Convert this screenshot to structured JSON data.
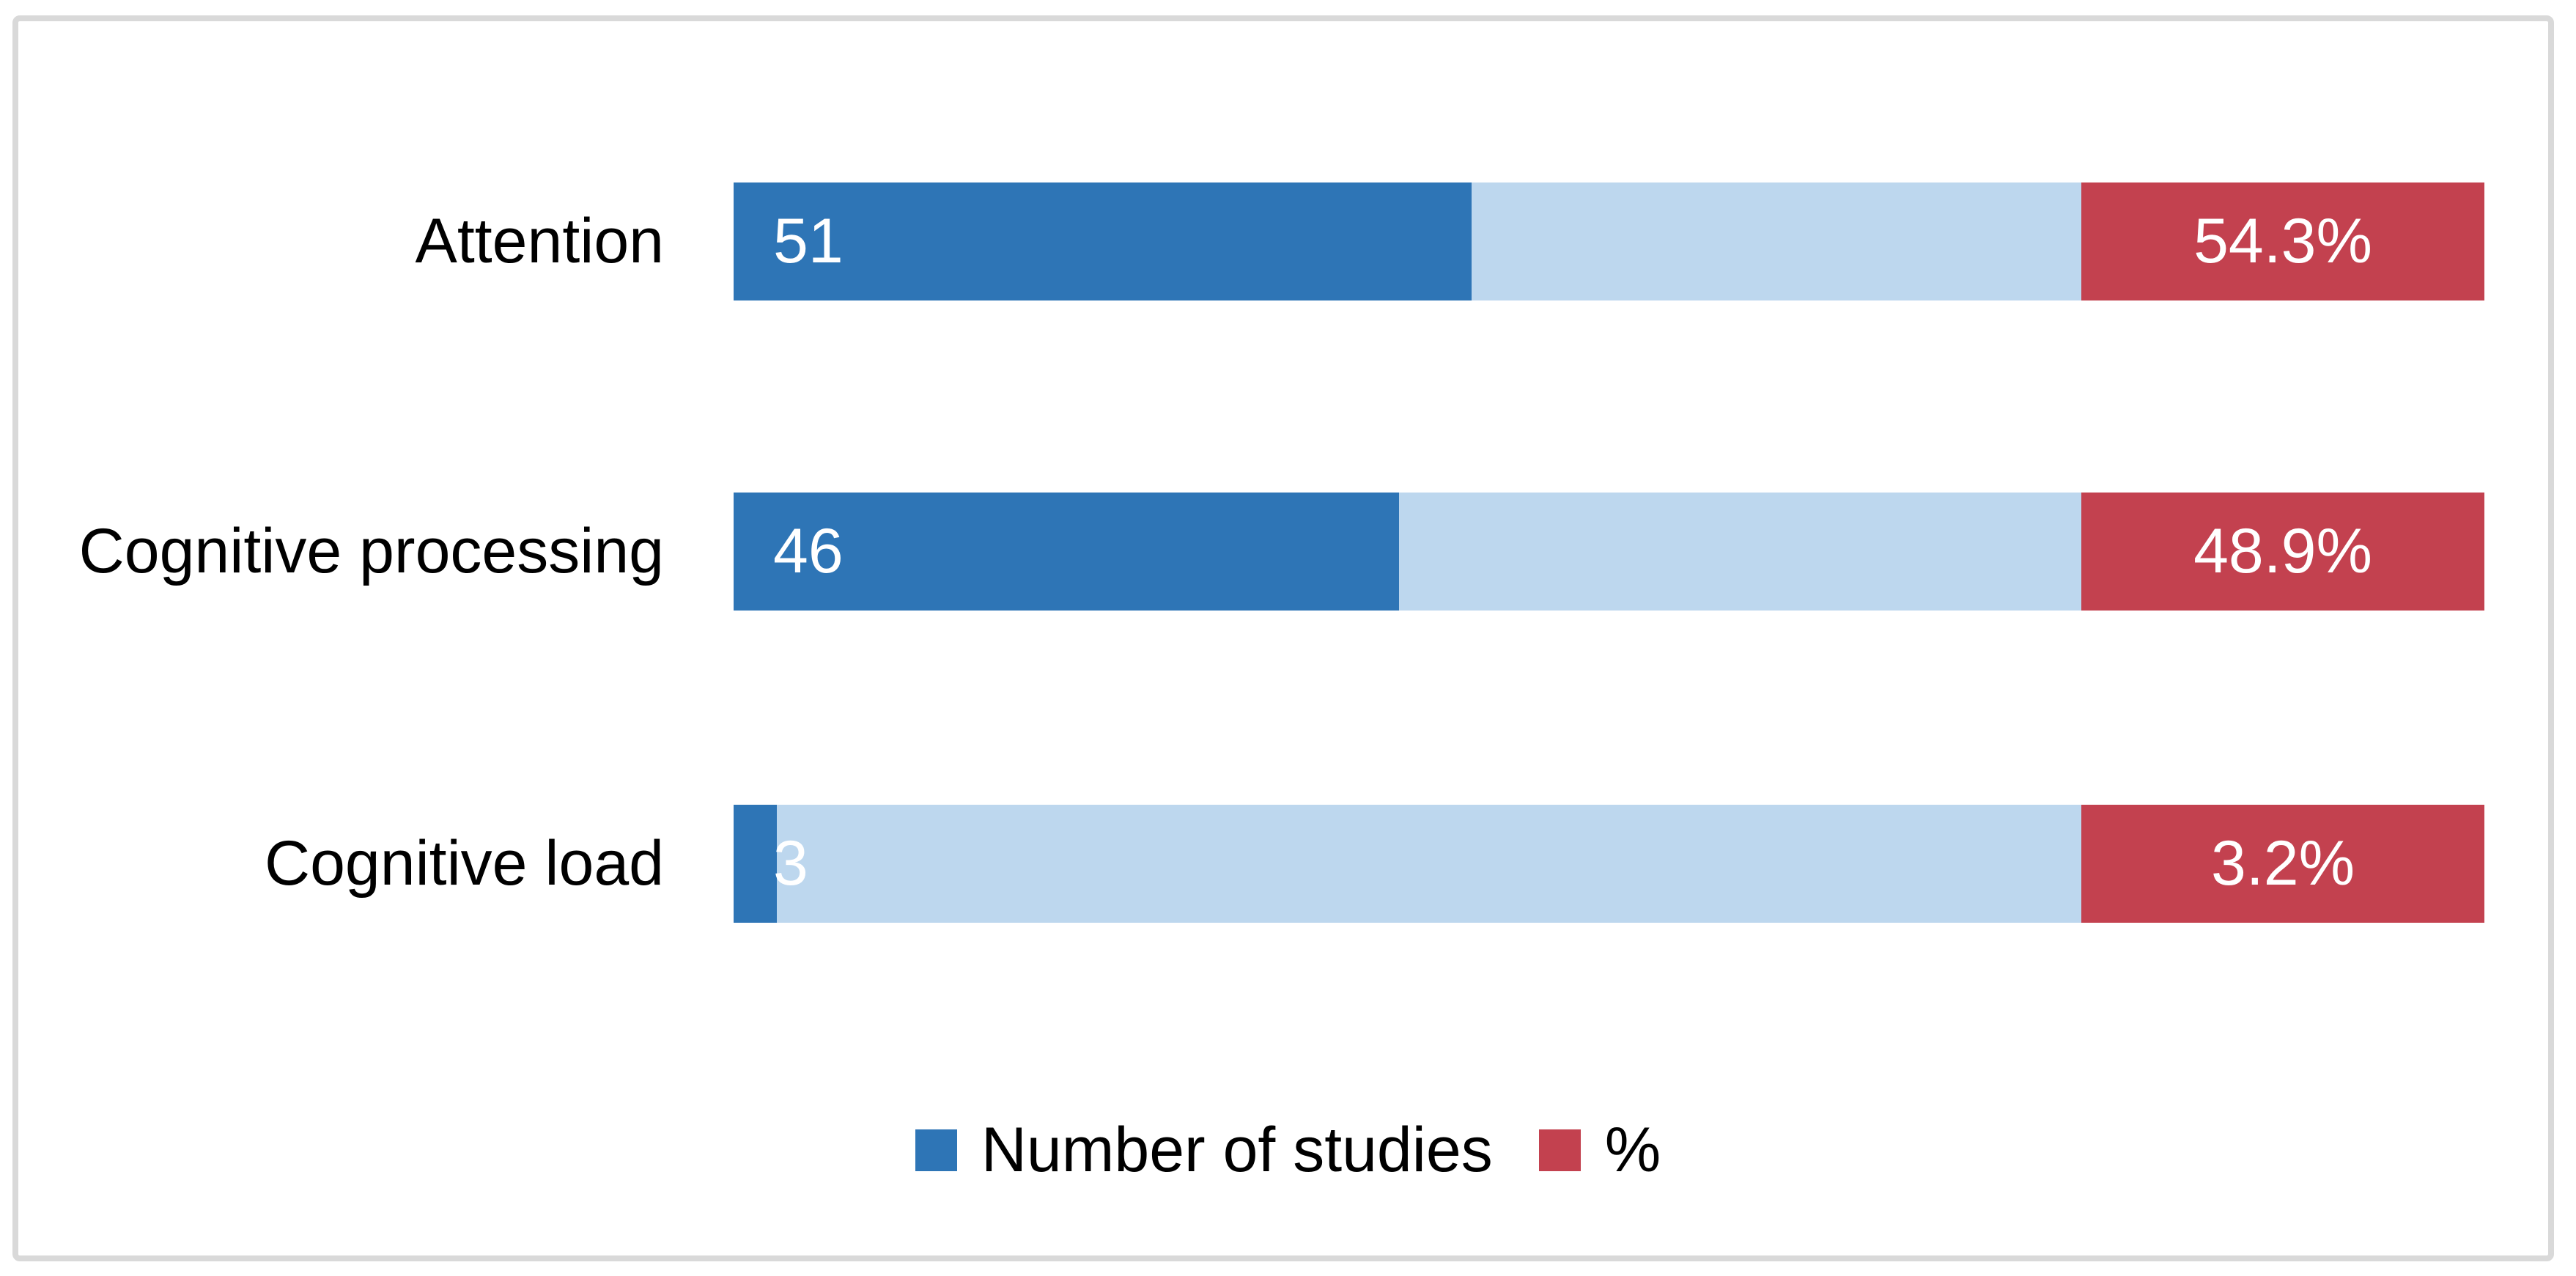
{
  "chart_data": {
    "type": "bar",
    "orientation": "horizontal-stacked",
    "title": "",
    "categories": [
      "Attention",
      "Cognitive processing",
      "Cognitive load"
    ],
    "series": [
      {
        "name": "Number of studies",
        "values": [
          51,
          46,
          3
        ],
        "color": "#2E75B6"
      },
      {
        "name": "filler-band-unlabeled",
        "values": null,
        "color": "#BDD7EE"
      },
      {
        "name": "%",
        "values": [
          54.3,
          48.9,
          3.2
        ],
        "color": "#C3414F"
      }
    ],
    "value_labels": {
      "studies": [
        "51",
        "46",
        "3"
      ],
      "pct": [
        "54.3%",
        "48.9%",
        "3.2%"
      ]
    },
    "legend": {
      "position": "bottom-center",
      "items": [
        {
          "label": "Number of studies",
          "color": "#2E75B6"
        },
        {
          "label": "%",
          "color": "#C3414F"
        }
      ]
    },
    "layout_hints": {
      "grid": false,
      "axes_visible": false,
      "studies_axis_max": 121,
      "pct_band_fraction": 0.2302,
      "bar_label_text_color": "#FFFFFF",
      "category_text_color": "#000000",
      "frame_border_color": "#D9D9D9",
      "background": "#FFFFFF"
    }
  }
}
